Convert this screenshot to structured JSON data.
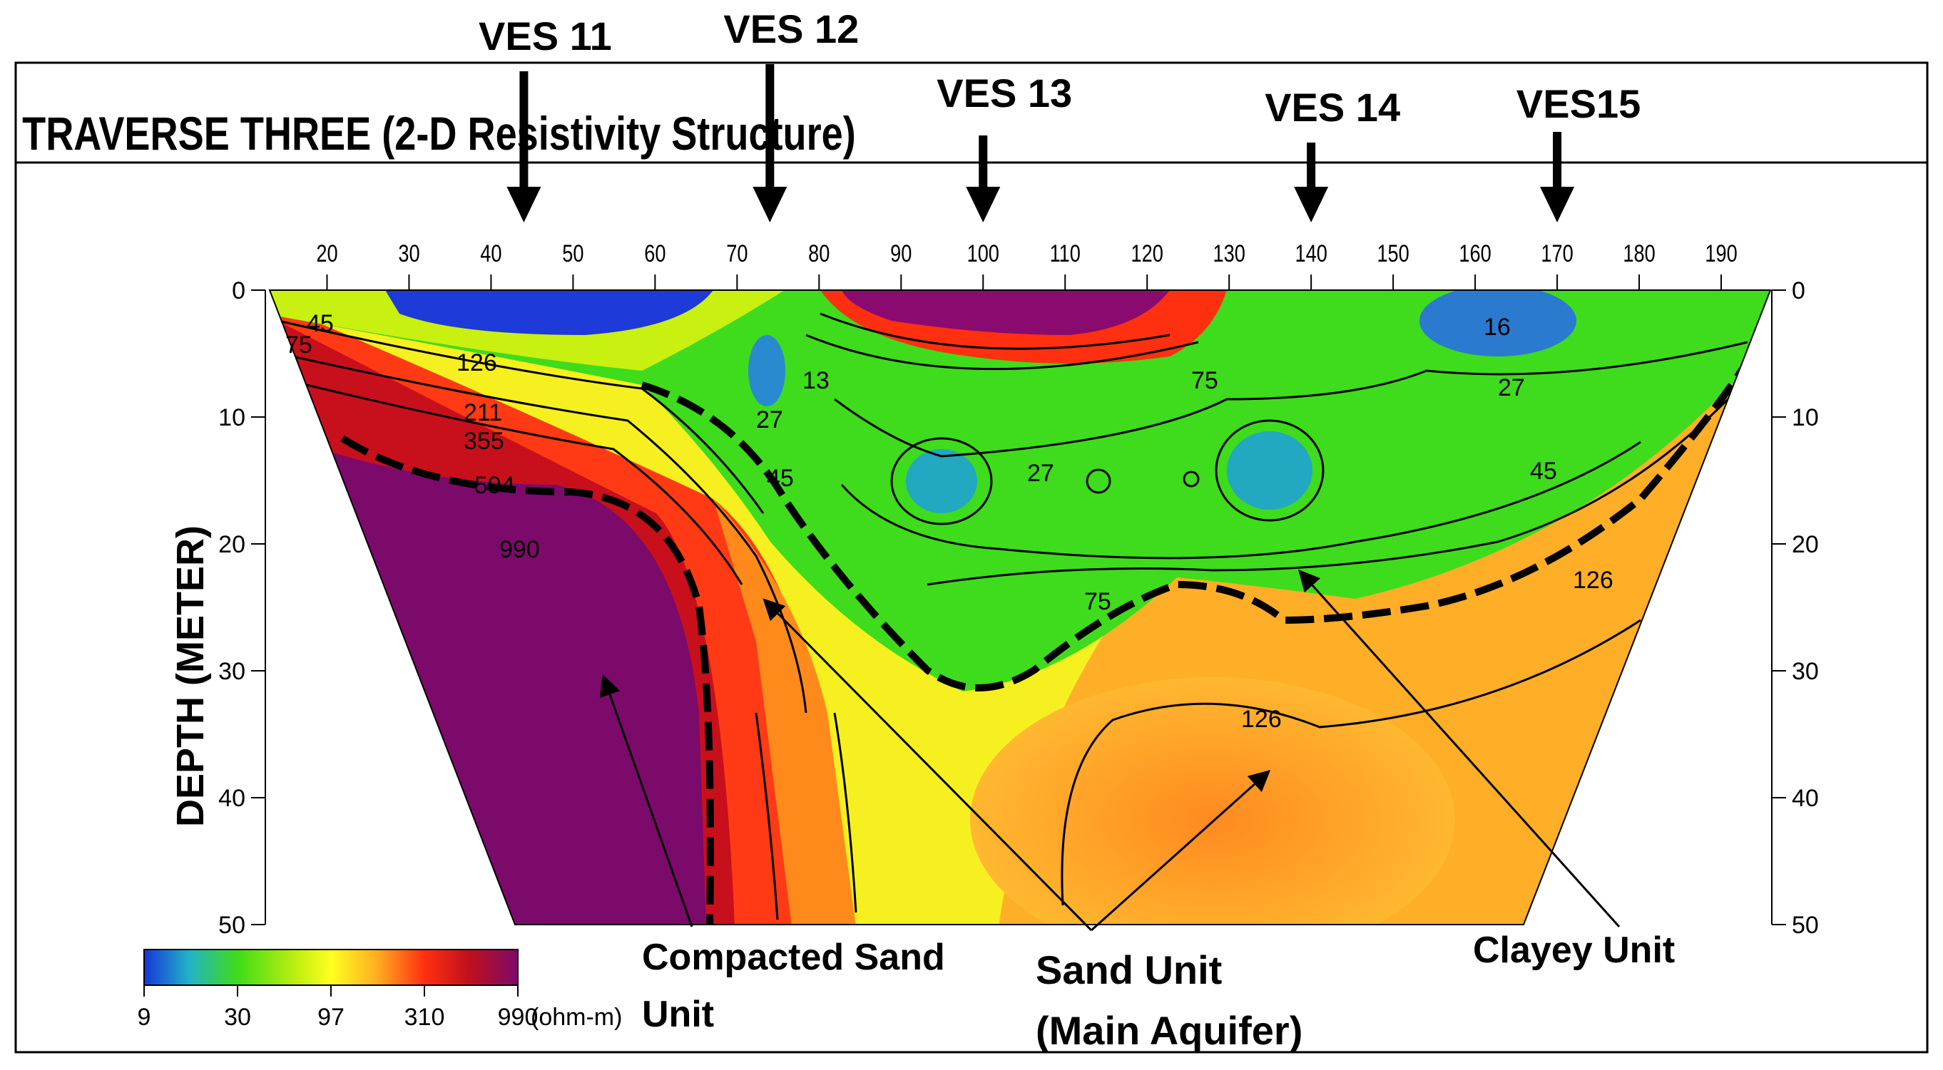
{
  "title": "TRAVERSE THREE (2-D Resistivity Structure)",
  "ves_markers": [
    {
      "label": "VES 11",
      "position": 44
    },
    {
      "label": "VES 12",
      "position": 74
    },
    {
      "label": "VES 13",
      "position": 100
    },
    {
      "label": "VES 14",
      "position": 140
    },
    {
      "label": "VES15",
      "position": 170
    }
  ],
  "x_axis": {
    "ticks": [
      "20",
      "30",
      "40",
      "50",
      "60",
      "70",
      "80",
      "90",
      "100",
      "110",
      "120",
      "130",
      "140",
      "150",
      "160",
      "170",
      "180",
      "190"
    ],
    "range": [
      13,
      196
    ]
  },
  "y_axis": {
    "label": "DEPTH (METER)",
    "ticks": [
      "0",
      "10",
      "20",
      "30",
      "40",
      "50"
    ],
    "range": [
      0,
      50
    ]
  },
  "colorbar": {
    "ticks": [
      "9",
      "30",
      "97",
      "310",
      "990"
    ],
    "unit": "(ohm-m)",
    "colors": [
      "#1436d8",
      "#22b3c8",
      "#3fdc18",
      "#b8ee10",
      "#ffff20",
      "#ffb020",
      "#ff3010",
      "#c0101c",
      "#7c0a6a"
    ]
  },
  "contour_labels": [
    "45",
    "75",
    "126",
    "211",
    "355",
    "594",
    "990",
    "27",
    "16",
    "13",
    "75",
    "27",
    "45",
    "75",
    "126",
    "27",
    "45",
    "126"
  ],
  "annotations": [
    {
      "text_lines": [
        "Compacted Sand",
        "Unit"
      ]
    },
    {
      "text_lines": [
        "Sand Unit",
        "(Main Aquifer)"
      ]
    },
    {
      "text_lines": [
        "Clayey Unit"
      ]
    }
  ]
}
